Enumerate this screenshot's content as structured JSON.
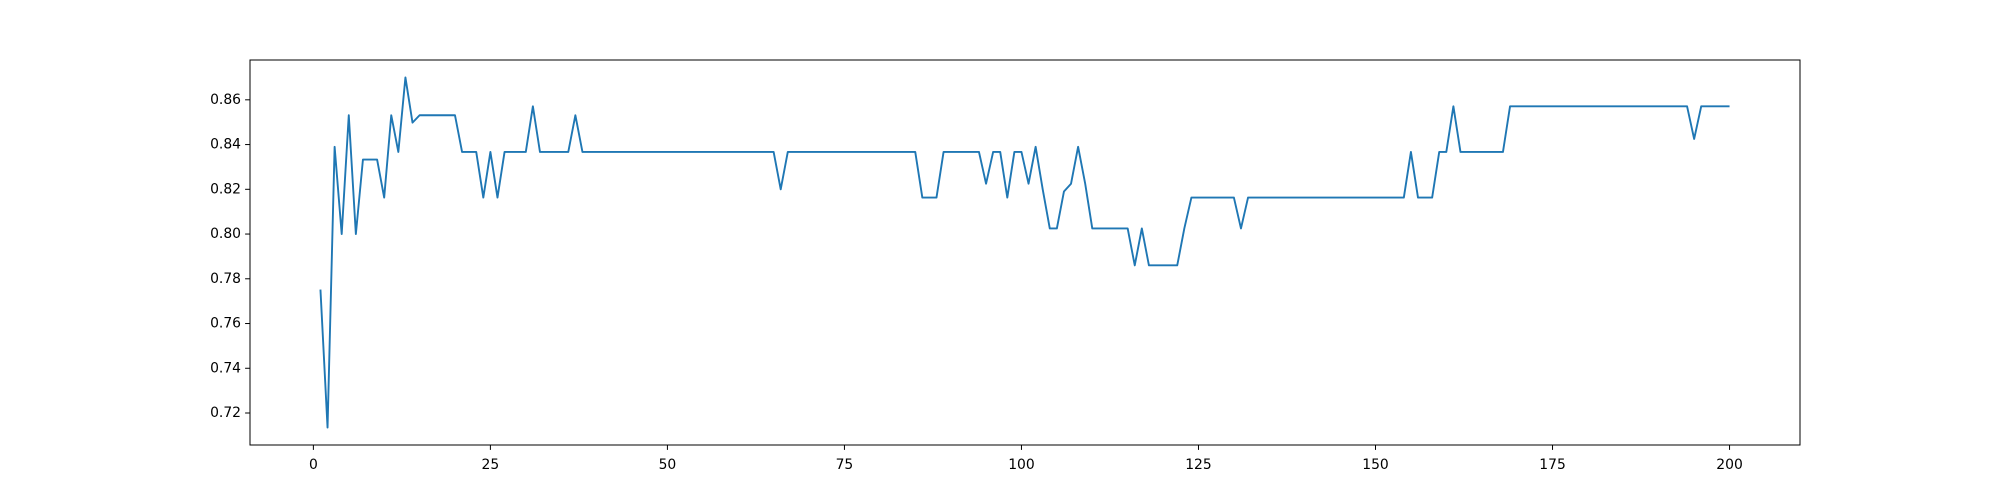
{
  "chart_data": {
    "type": "line",
    "x": [
      1,
      2,
      3,
      4,
      5,
      6,
      7,
      8,
      9,
      10,
      11,
      12,
      13,
      14,
      15,
      16,
      17,
      18,
      19,
      20,
      21,
      22,
      23,
      24,
      25,
      26,
      27,
      28,
      29,
      30,
      31,
      32,
      33,
      34,
      35,
      36,
      37,
      38,
      39,
      40,
      41,
      42,
      43,
      44,
      45,
      46,
      47,
      48,
      49,
      50,
      51,
      52,
      53,
      54,
      55,
      56,
      57,
      58,
      59,
      60,
      61,
      62,
      63,
      64,
      65,
      66,
      67,
      68,
      69,
      70,
      71,
      72,
      73,
      74,
      75,
      76,
      77,
      78,
      79,
      80,
      81,
      82,
      83,
      84,
      85,
      86,
      87,
      88,
      89,
      90,
      91,
      92,
      93,
      94,
      95,
      96,
      97,
      98,
      99,
      100,
      101,
      102,
      103,
      104,
      105,
      106,
      107,
      108,
      109,
      110,
      111,
      112,
      113,
      114,
      115,
      116,
      117,
      118,
      119,
      120,
      121,
      122,
      123,
      124,
      125,
      126,
      127,
      128,
      129,
      130,
      131,
      132,
      133,
      134,
      135,
      136,
      137,
      138,
      139,
      140,
      141,
      142,
      143,
      144,
      145,
      146,
      147,
      148,
      149,
      150,
      151,
      152,
      153,
      154,
      155,
      156,
      157,
      158,
      159,
      160,
      161,
      162,
      163,
      164,
      165,
      166,
      167,
      168,
      169,
      170,
      171,
      172,
      173,
      174,
      175,
      176,
      177,
      178,
      179,
      180,
      181,
      182,
      183,
      184,
      185,
      186,
      187,
      188,
      189,
      190,
      191,
      192,
      193,
      194,
      195,
      196,
      197,
      198,
      199,
      200
    ],
    "series": [
      {
        "color": "#1f77b4",
        "values": [
          0.7752,
          0.7135,
          0.839,
          0.8,
          0.8531,
          0.8,
          0.8333,
          0.8333,
          0.8333,
          0.8163,
          0.8531,
          0.8367,
          0.87,
          0.8498,
          0.8531,
          0.8531,
          0.8531,
          0.8531,
          0.8531,
          0.8531,
          0.8367,
          0.8367,
          0.8367,
          0.8163,
          0.8367,
          0.8163,
          0.8367,
          0.8367,
          0.8367,
          0.8367,
          0.8571,
          0.8367,
          0.8367,
          0.8367,
          0.8367,
          0.8367,
          0.8531,
          0.8367,
          0.8367,
          0.8367,
          0.8367,
          0.8367,
          0.8367,
          0.8367,
          0.8367,
          0.8367,
          0.8367,
          0.8367,
          0.8367,
          0.8367,
          0.8367,
          0.8367,
          0.8367,
          0.8367,
          0.8367,
          0.8367,
          0.8367,
          0.8367,
          0.8367,
          0.8367,
          0.8367,
          0.8367,
          0.8367,
          0.8367,
          0.8367,
          0.82,
          0.8367,
          0.8367,
          0.8367,
          0.8367,
          0.8367,
          0.8367,
          0.8367,
          0.8367,
          0.8367,
          0.8367,
          0.8367,
          0.8367,
          0.8367,
          0.8367,
          0.8367,
          0.8367,
          0.8367,
          0.8367,
          0.8367,
          0.8163,
          0.8163,
          0.8163,
          0.8367,
          0.8367,
          0.8367,
          0.8367,
          0.8367,
          0.8367,
          0.8225,
          0.8367,
          0.8367,
          0.8163,
          0.8367,
          0.8367,
          0.8225,
          0.839,
          0.82,
          0.8025,
          0.8025,
          0.819,
          0.8225,
          0.839,
          0.8225,
          0.8025,
          0.8025,
          0.8025,
          0.8025,
          0.8025,
          0.8025,
          0.786,
          0.8025,
          0.786,
          0.786,
          0.786,
          0.786,
          0.786,
          0.8025,
          0.8163,
          0.8163,
          0.8163,
          0.8163,
          0.8163,
          0.8163,
          0.8163,
          0.8025,
          0.8163,
          0.8163,
          0.8163,
          0.8163,
          0.8163,
          0.8163,
          0.8163,
          0.8163,
          0.8163,
          0.8163,
          0.8163,
          0.8163,
          0.8163,
          0.8163,
          0.8163,
          0.8163,
          0.8163,
          0.8163,
          0.8163,
          0.8163,
          0.8163,
          0.8163,
          0.8163,
          0.8367,
          0.8163,
          0.8163,
          0.8163,
          0.8367,
          0.8367,
          0.8571,
          0.8367,
          0.8367,
          0.8367,
          0.8367,
          0.8367,
          0.8367,
          0.8367,
          0.8571,
          0.8571,
          0.8571,
          0.8571,
          0.8571,
          0.8571,
          0.8571,
          0.8571,
          0.8571,
          0.8571,
          0.8571,
          0.8571,
          0.8571,
          0.8571,
          0.8571,
          0.8571,
          0.8571,
          0.8571,
          0.8571,
          0.8571,
          0.8571,
          0.8571,
          0.8571,
          0.8571,
          0.8571,
          0.8571,
          0.8425,
          0.8571,
          0.8571,
          0.8571,
          0.8571,
          0.8571
        ]
      }
    ],
    "xlim": [
      -8.95,
      209.95
    ],
    "xticks": [
      0,
      25,
      50,
      75,
      100,
      125,
      150,
      175,
      200
    ],
    "ylim": [
      0.7057,
      0.8778
    ],
    "yticks": [
      0.72,
      0.74,
      0.76,
      0.78,
      {
        "value": 0.8,
        "label": "0.80"
      },
      0.82,
      0.84,
      0.86
    ]
  }
}
